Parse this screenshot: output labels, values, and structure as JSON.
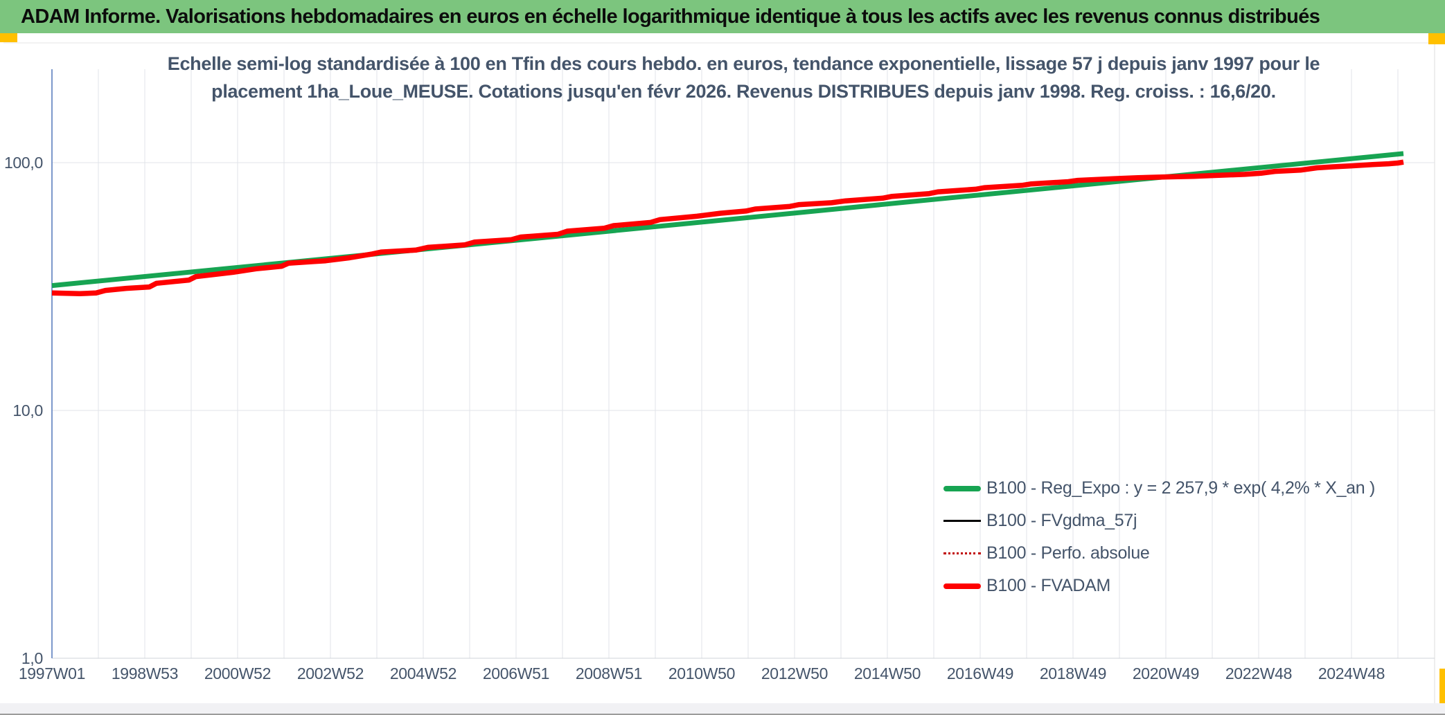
{
  "header": {
    "title": "ADAM Informe. Valorisations hebdomadaires en euros en échelle logarithmique identique à tous les actifs avec les revenus connus distribués"
  },
  "colors": {
    "header_bg": "#7cc57e",
    "accent_gold": "#ffc000",
    "text_dark": "#44546a",
    "grid": "#e0e3e8",
    "baseline": "#cfd3d9",
    "axis_line": "#5b7fbe",
    "trend_green": "#17a452",
    "series_red": "#fe0000",
    "series_black": "#000000",
    "series_dotted_red": "#c00000"
  },
  "chart_title": {
    "line1": "Echelle semi-log standardisée à 100 en Tfin des cours hebdo. en euros, tendance exponentielle, lissage 57 j depuis janv 1997 pour le",
    "line2": "placement 1ha_Loue_MEUSE. Cotations jusqu'en févr 2026. Revenus DISTRIBUES depuis janv 1998. Reg. croiss. : 16,6/20."
  },
  "legend": {
    "items": [
      {
        "label": "B100 - Reg_Expo : y = 2 257,9 * exp( 4,2% *  X_an )",
        "color": "#17a452",
        "style": "solid-thick"
      },
      {
        "label": "B100 - FVgdma_57j",
        "color": "#000000",
        "style": "solid-thin"
      },
      {
        "label": "B100 - Perfo. absolue",
        "color": "#c00000",
        "style": "dotted"
      },
      {
        "label": "B100 - FVADAM",
        "color": "#fe0000",
        "style": "solid-thick"
      }
    ]
  },
  "chart_data": {
    "type": "line",
    "x_axis": {
      "unit": "ISO week (weekly quotes)",
      "start_year": 1997.0,
      "end_year_data": 2026.12,
      "tick_years": [
        1997,
        1999,
        2001,
        2003,
        2005,
        2007,
        2009,
        2011,
        2013,
        2015,
        2017,
        2019,
        2021,
        2023,
        2025
      ],
      "tick_labels": [
        "1997W01",
        "1998W53",
        "2000W52",
        "2002W52",
        "2004W52",
        "2006W51",
        "2008W51",
        "2010W50",
        "2012W50",
        "2014W50",
        "2016W49",
        "2018W49",
        "2020W49",
        "2022W48",
        "2024W48"
      ],
      "grid_every_years": 1
    },
    "y_axis": {
      "scale": "log10",
      "tick_values": [
        100,
        10,
        1
      ],
      "tick_labels": [
        "100,0",
        "10,0",
        "1,0"
      ],
      "range": [
        1,
        200
      ],
      "grid": true
    },
    "legend_position": "inside-right",
    "series": [
      {
        "name": "B100 - Reg_Expo : y = 2 257,9 * exp( 4,2% *  X_an )",
        "role": "trend",
        "color": "#17a452",
        "width": 7,
        "dash": null,
        "points": [
          [
            1997.0,
            31.9
          ],
          [
            2026.12,
            108.8
          ]
        ]
      },
      {
        "name": "B100 - FVgdma_57j",
        "role": "smoothed",
        "color": "#000000",
        "width": 2.5,
        "dash": null,
        "points_ref": "B100 - FVADAM",
        "note": "coincides with FVADAM curve, hidden beneath it"
      },
      {
        "name": "B100 - Perfo. absolue",
        "role": "absolute-performance",
        "color": "#c00000",
        "width": 2.5,
        "dash": "2 4",
        "points_ref": "B100 - FVADAM",
        "note": "coincides with FVADAM curve, hidden beneath it"
      },
      {
        "name": "B100 - FVADAM",
        "role": "main",
        "color": "#fe0000",
        "width": 7.5,
        "dash": null,
        "points": [
          [
            1997.0,
            29.8
          ],
          [
            1997.6,
            29.6
          ],
          [
            1997.95,
            29.8
          ],
          [
            1998.15,
            30.5
          ],
          [
            1998.6,
            31.1
          ],
          [
            1999.1,
            31.5
          ],
          [
            1999.25,
            32.6
          ],
          [
            1999.95,
            33.6
          ],
          [
            2000.1,
            34.7
          ],
          [
            2000.9,
            36.1
          ],
          [
            2001.4,
            37.3
          ],
          [
            2001.95,
            38.2
          ],
          [
            2002.1,
            39.3
          ],
          [
            2002.9,
            40.2
          ],
          [
            2003.4,
            41.3
          ],
          [
            2003.9,
            42.8
          ],
          [
            2004.1,
            43.6
          ],
          [
            2004.85,
            44.4
          ],
          [
            2005.1,
            45.5
          ],
          [
            2005.9,
            46.6
          ],
          [
            2006.1,
            47.8
          ],
          [
            2006.9,
            48.9
          ],
          [
            2007.1,
            50.1
          ],
          [
            2007.9,
            51.4
          ],
          [
            2008.1,
            52.9
          ],
          [
            2008.9,
            54.4
          ],
          [
            2009.1,
            55.7
          ],
          [
            2009.9,
            57.4
          ],
          [
            2010.1,
            58.9
          ],
          [
            2010.9,
            60.8
          ],
          [
            2011.4,
            62.5
          ],
          [
            2011.95,
            63.8
          ],
          [
            2012.15,
            65.0
          ],
          [
            2012.9,
            66.6
          ],
          [
            2013.1,
            67.7
          ],
          [
            2013.8,
            68.9
          ],
          [
            2014.1,
            70.1
          ],
          [
            2014.9,
            71.9
          ],
          [
            2015.1,
            73.1
          ],
          [
            2015.9,
            75.0
          ],
          [
            2016.1,
            76.3
          ],
          [
            2016.9,
            78.1
          ],
          [
            2017.1,
            79.3
          ],
          [
            2017.9,
            81.0
          ],
          [
            2018.1,
            82.1
          ],
          [
            2018.9,
            83.8
          ],
          [
            2019.1,
            84.8
          ],
          [
            2019.9,
            86.2
          ],
          [
            2020.4,
            87.0
          ],
          [
            2021.0,
            87.6
          ],
          [
            2021.6,
            88.1
          ],
          [
            2022.0,
            88.7
          ],
          [
            2022.7,
            89.7
          ],
          [
            2023.05,
            90.6
          ],
          [
            2023.35,
            92.2
          ],
          [
            2023.9,
            93.3
          ],
          [
            2024.25,
            95.3
          ],
          [
            2024.6,
            96.2
          ],
          [
            2025.0,
            97.1
          ],
          [
            2025.45,
            98.2
          ],
          [
            2025.8,
            99.0
          ],
          [
            2026.0,
            99.7
          ],
          [
            2026.12,
            100.5
          ]
        ]
      }
    ]
  }
}
